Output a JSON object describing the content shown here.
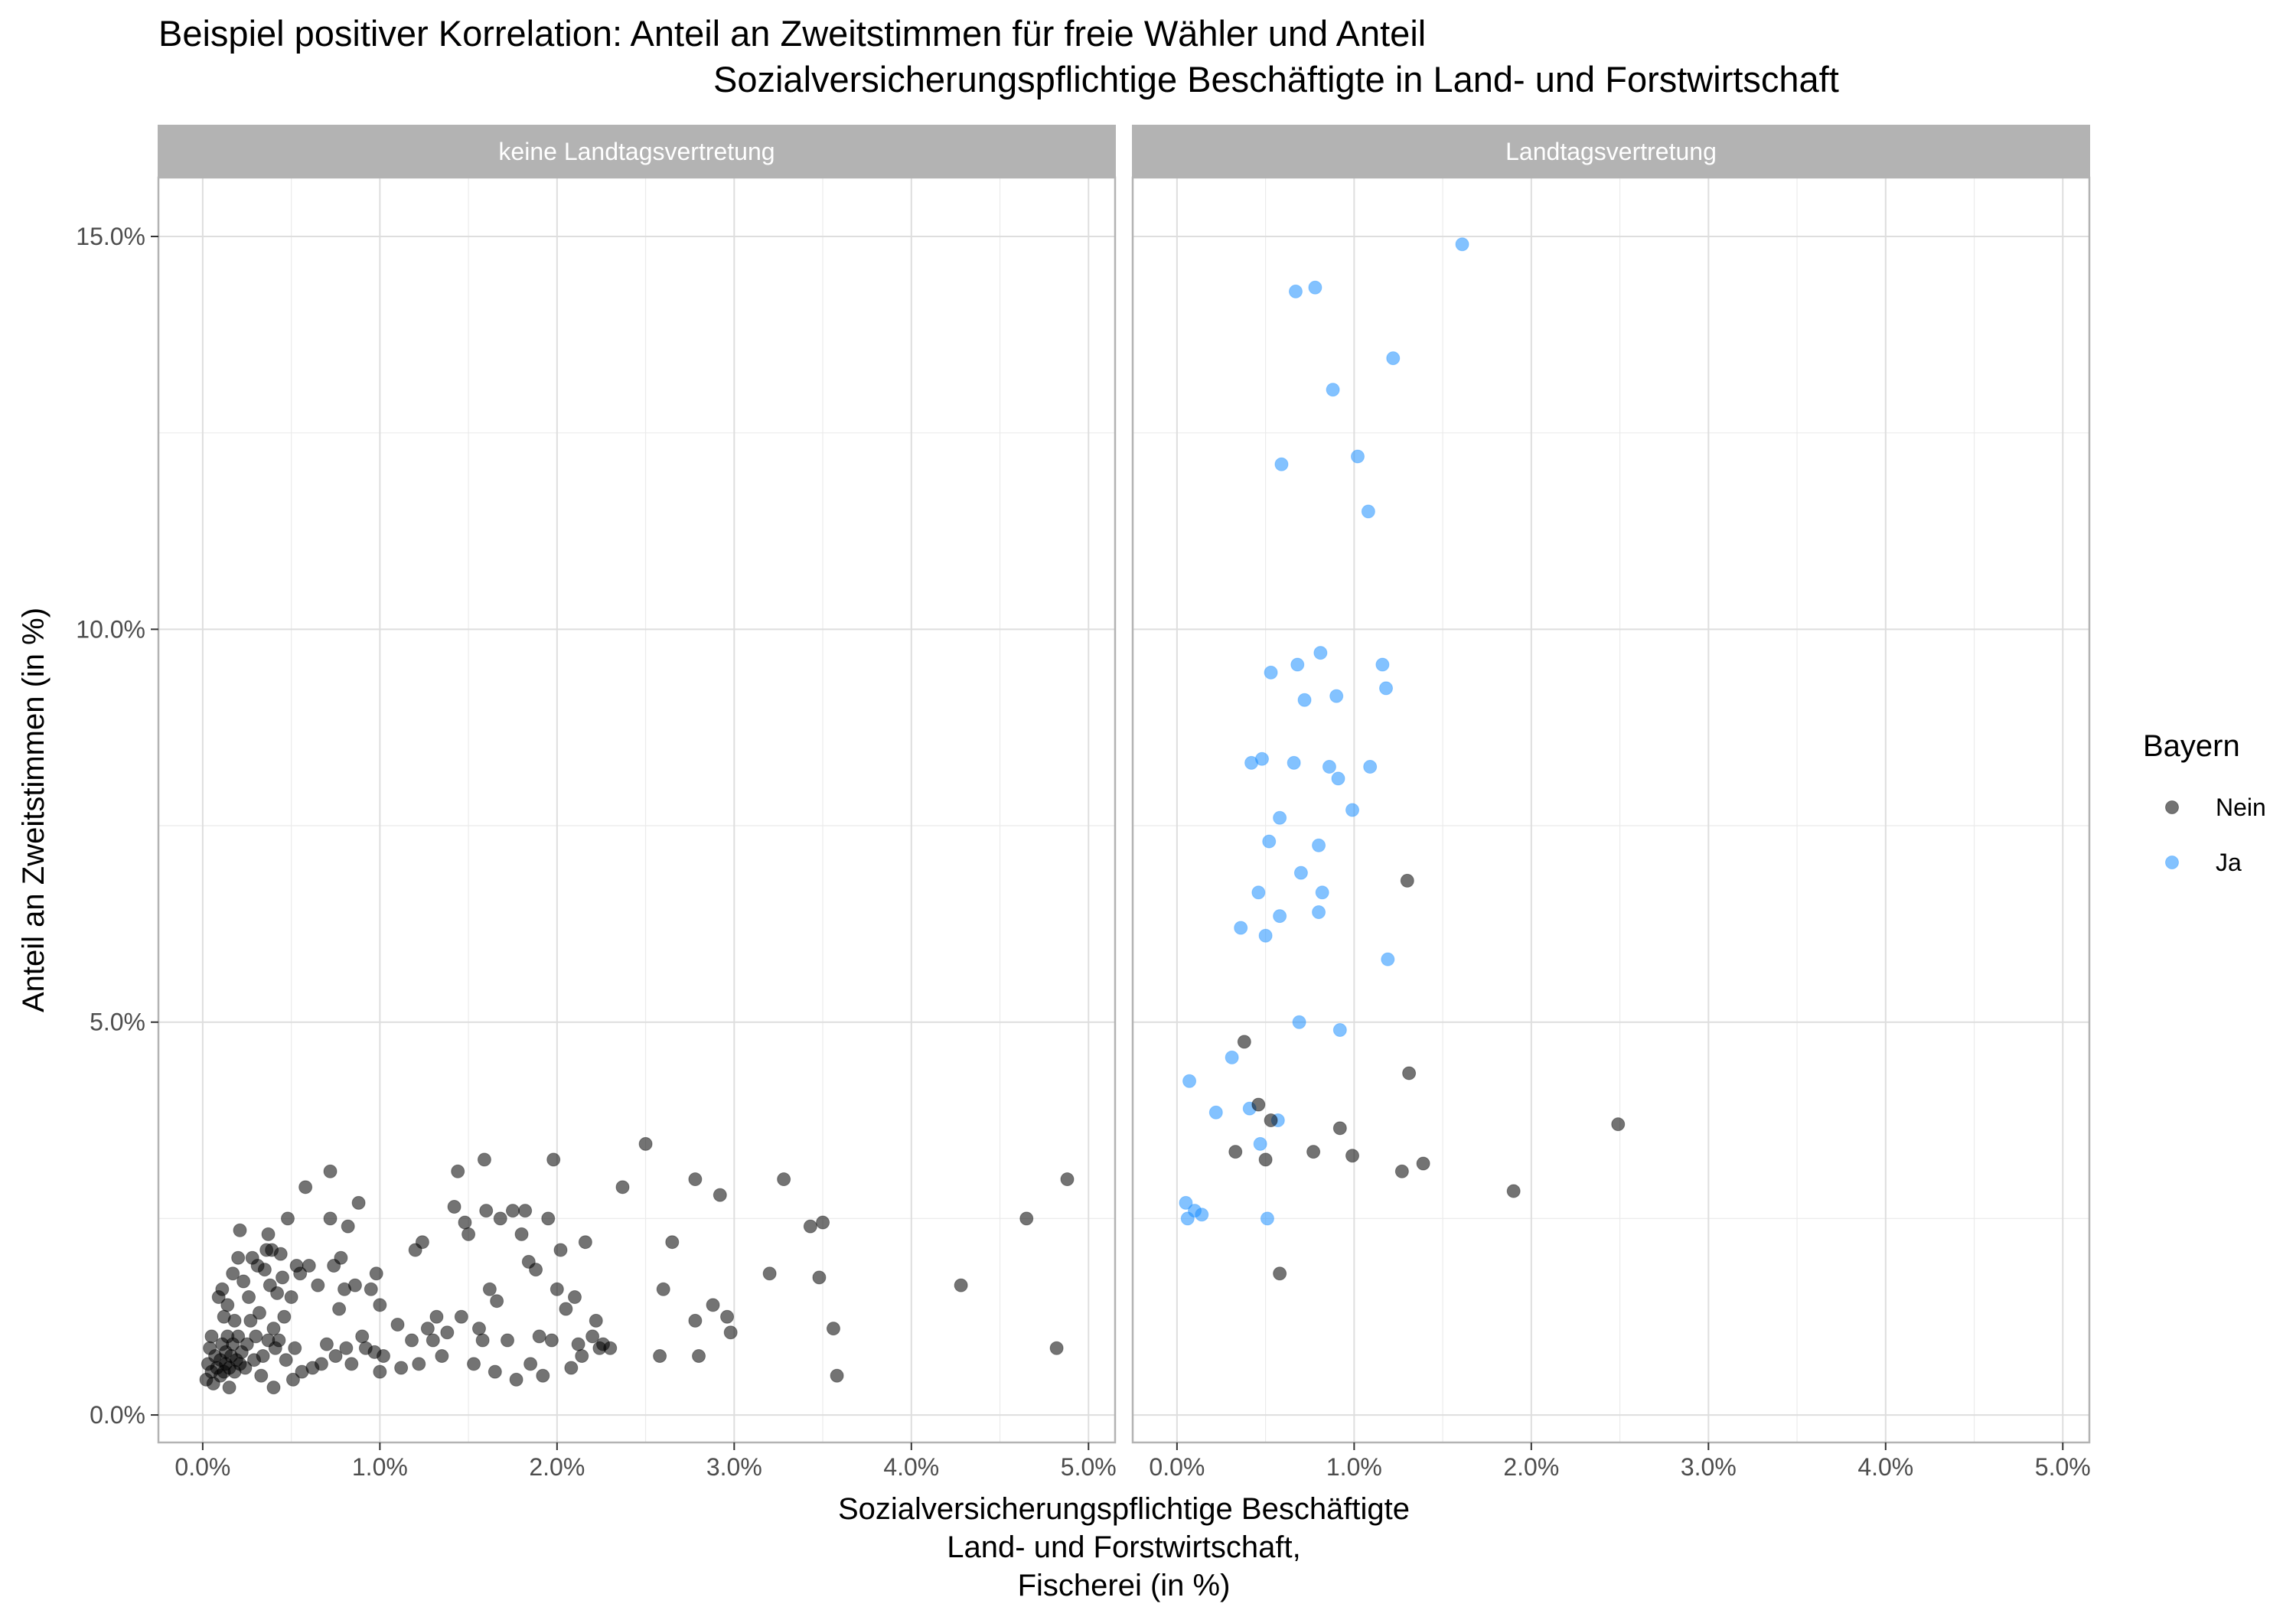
{
  "chart_data": {
    "type": "scatter",
    "title": [
      "Beispiel positiver Korrelation: Anteil an Zweitstimmen für freie Wähler und Anteil",
      "Sozialversicherungspflichtige Beschäftigte in Land- und Forstwirtschaft"
    ],
    "xlabel": [
      "Sozialversicherungspflichtige Beschäftigte",
      "Land- und Forstwirtschaft,",
      "Fischerei (in %)"
    ],
    "ylabel": "Anteil an Zweitstimmen (in %)",
    "xlim": [
      -0.25,
      5.15
    ],
    "ylim": [
      -0.35,
      15.75
    ],
    "x_ticks": [
      0,
      1,
      2,
      3,
      4,
      5
    ],
    "x_tick_labels": [
      "0.0%",
      "1.0%",
      "2.0%",
      "3.0%",
      "4.0%",
      "5.0%"
    ],
    "y_ticks": [
      0,
      5,
      10,
      15
    ],
    "y_tick_labels": [
      "0.0%",
      "5.0%",
      "10.0%",
      "15.0%"
    ],
    "grid": true,
    "legend": {
      "title": "Bayern",
      "placement": "right",
      "entries": [
        {
          "label": "Nein",
          "color": "#000000"
        },
        {
          "label": "Ja",
          "color": "#1E90FF"
        }
      ]
    },
    "panels": [
      {
        "strip": "keine Landtagsvertretung",
        "series": [
          {
            "legend": "Nein",
            "color": "#000000",
            "points": [
              [
                0.02,
                0.45
              ],
              [
                0.03,
                0.65
              ],
              [
                0.04,
                0.85
              ],
              [
                0.05,
                0.55
              ],
              [
                0.05,
                1.0
              ],
              [
                0.06,
                0.4
              ],
              [
                0.07,
                0.75
              ],
              [
                0.08,
                0.6
              ],
              [
                0.09,
                1.5
              ],
              [
                0.1,
                0.5
              ],
              [
                0.1,
                0.7
              ],
              [
                0.11,
                0.9
              ],
              [
                0.11,
                1.6
              ],
              [
                0.12,
                0.55
              ],
              [
                0.12,
                1.25
              ],
              [
                0.13,
                0.65
              ],
              [
                0.13,
                0.8
              ],
              [
                0.14,
                1.0
              ],
              [
                0.14,
                1.4
              ],
              [
                0.15,
                0.6
              ],
              [
                0.15,
                0.35
              ],
              [
                0.16,
                0.75
              ],
              [
                0.17,
                0.9
              ],
              [
                0.17,
                1.8
              ],
              [
                0.18,
                0.55
              ],
              [
                0.18,
                1.2
              ],
              [
                0.19,
                0.7
              ],
              [
                0.2,
                2.0
              ],
              [
                0.2,
                1.0
              ],
              [
                0.21,
                0.65
              ],
              [
                0.21,
                2.35
              ],
              [
                0.22,
                0.8
              ],
              [
                0.23,
                1.7
              ],
              [
                0.24,
                0.6
              ],
              [
                0.25,
                0.9
              ],
              [
                0.26,
                1.5
              ],
              [
                0.27,
                1.2
              ],
              [
                0.28,
                2.0
              ],
              [
                0.29,
                0.7
              ],
              [
                0.3,
                1.0
              ],
              [
                0.31,
                1.9
              ],
              [
                0.32,
                1.3
              ],
              [
                0.33,
                0.5
              ],
              [
                0.34,
                0.75
              ],
              [
                0.35,
                1.85
              ],
              [
                0.36,
                2.1
              ],
              [
                0.37,
                2.3
              ],
              [
                0.37,
                0.95
              ],
              [
                0.38,
                1.65
              ],
              [
                0.39,
                2.1
              ],
              [
                0.4,
                1.1
              ],
              [
                0.4,
                0.35
              ],
              [
                0.41,
                0.85
              ],
              [
                0.42,
                1.55
              ],
              [
                0.43,
                0.95
              ],
              [
                0.44,
                2.05
              ],
              [
                0.45,
                1.75
              ],
              [
                0.46,
                1.25
              ],
              [
                0.47,
                0.7
              ],
              [
                0.48,
                2.5
              ],
              [
                0.5,
                1.5
              ],
              [
                0.51,
                0.45
              ],
              [
                0.52,
                0.85
              ],
              [
                0.53,
                1.9
              ],
              [
                0.55,
                1.8
              ],
              [
                0.56,
                0.55
              ],
              [
                0.58,
                2.9
              ],
              [
                0.6,
                1.9
              ],
              [
                0.62,
                0.6
              ],
              [
                0.65,
                1.65
              ],
              [
                0.67,
                0.65
              ],
              [
                0.7,
                0.9
              ],
              [
                0.72,
                2.5
              ],
              [
                0.72,
                3.1
              ],
              [
                0.74,
                1.9
              ],
              [
                0.75,
                0.75
              ],
              [
                0.77,
                1.35
              ],
              [
                0.78,
                2.0
              ],
              [
                0.8,
                1.6
              ],
              [
                0.81,
                0.85
              ],
              [
                0.82,
                2.4
              ],
              [
                0.84,
                0.65
              ],
              [
                0.86,
                1.65
              ],
              [
                0.88,
                2.7
              ],
              [
                0.9,
                1.0
              ],
              [
                0.92,
                0.85
              ],
              [
                0.95,
                1.6
              ],
              [
                0.97,
                0.8
              ],
              [
                0.98,
                1.8
              ],
              [
                1.0,
                0.55
              ],
              [
                1.0,
                1.4
              ],
              [
                1.02,
                0.75
              ],
              [
                1.1,
                1.15
              ],
              [
                1.12,
                0.6
              ],
              [
                1.18,
                0.95
              ],
              [
                1.2,
                2.1
              ],
              [
                1.22,
                0.65
              ],
              [
                1.24,
                2.2
              ],
              [
                1.27,
                1.1
              ],
              [
                1.3,
                0.95
              ],
              [
                1.32,
                1.25
              ],
              [
                1.35,
                0.75
              ],
              [
                1.38,
                1.05
              ],
              [
                1.42,
                2.65
              ],
              [
                1.44,
                3.1
              ],
              [
                1.46,
                1.25
              ],
              [
                1.48,
                2.45
              ],
              [
                1.5,
                2.3
              ],
              [
                1.53,
                0.65
              ],
              [
                1.56,
                1.1
              ],
              [
                1.58,
                0.95
              ],
              [
                1.59,
                3.25
              ],
              [
                1.6,
                2.6
              ],
              [
                1.62,
                1.6
              ],
              [
                1.65,
                0.55
              ],
              [
                1.66,
                1.45
              ],
              [
                1.68,
                2.5
              ],
              [
                1.72,
                0.95
              ],
              [
                1.75,
                2.6
              ],
              [
                1.77,
                0.45
              ],
              [
                1.8,
                2.3
              ],
              [
                1.82,
                2.6
              ],
              [
                1.84,
                1.95
              ],
              [
                1.85,
                0.65
              ],
              [
                1.88,
                1.85
              ],
              [
                1.9,
                1.0
              ],
              [
                1.92,
                0.5
              ],
              [
                1.95,
                2.5
              ],
              [
                1.97,
                0.95
              ],
              [
                1.98,
                3.25
              ],
              [
                2.0,
                1.6
              ],
              [
                2.02,
                2.1
              ],
              [
                2.05,
                1.35
              ],
              [
                2.08,
                0.6
              ],
              [
                2.1,
                1.5
              ],
              [
                2.12,
                0.9
              ],
              [
                2.14,
                0.75
              ],
              [
                2.16,
                2.2
              ],
              [
                2.2,
                1.0
              ],
              [
                2.22,
                1.2
              ],
              [
                2.24,
                0.85
              ],
              [
                2.26,
                0.9
              ],
              [
                2.3,
                0.85
              ],
              [
                2.37,
                2.9
              ],
              [
                2.5,
                3.45
              ],
              [
                2.58,
                0.75
              ],
              [
                2.6,
                1.6
              ],
              [
                2.65,
                2.2
              ],
              [
                2.78,
                1.2
              ],
              [
                2.78,
                3.0
              ],
              [
                2.8,
                0.75
              ],
              [
                2.88,
                1.4
              ],
              [
                2.92,
                2.8
              ],
              [
                2.96,
                1.25
              ],
              [
                2.98,
                1.05
              ],
              [
                3.2,
                1.8
              ],
              [
                3.28,
                3.0
              ],
              [
                3.43,
                2.4
              ],
              [
                3.48,
                1.75
              ],
              [
                3.5,
                2.45
              ],
              [
                3.56,
                1.1
              ],
              [
                3.58,
                0.5
              ],
              [
                4.28,
                1.65
              ],
              [
                4.65,
                2.5
              ],
              [
                4.82,
                0.85
              ],
              [
                4.88,
                3.0
              ]
            ]
          }
        ]
      },
      {
        "strip": "Landtagsvertretung",
        "series": [
          {
            "legend": "Ja",
            "color": "#1E90FF",
            "points": [
              [
                0.07,
                4.25
              ],
              [
                0.05,
                2.7
              ],
              [
                0.06,
                2.5
              ],
              [
                0.1,
                2.6
              ],
              [
                0.14,
                2.55
              ],
              [
                0.22,
                3.85
              ],
              [
                0.31,
                4.55
              ],
              [
                0.36,
                6.2
              ],
              [
                0.41,
                3.9
              ],
              [
                0.42,
                8.3
              ],
              [
                0.46,
                6.65
              ],
              [
                0.47,
                3.45
              ],
              [
                0.48,
                8.35
              ],
              [
                0.5,
                6.1
              ],
              [
                0.51,
                2.5
              ],
              [
                0.52,
                7.3
              ],
              [
                0.53,
                9.45
              ],
              [
                0.57,
                3.75
              ],
              [
                0.58,
                6.35
              ],
              [
                0.58,
                7.6
              ],
              [
                0.59,
                12.1
              ],
              [
                0.66,
                8.3
              ],
              [
                0.67,
                14.3
              ],
              [
                0.68,
                9.55
              ],
              [
                0.69,
                5.0
              ],
              [
                0.7,
                6.9
              ],
              [
                0.72,
                9.1
              ],
              [
                0.78,
                14.35
              ],
              [
                0.8,
                7.25
              ],
              [
                0.8,
                6.4
              ],
              [
                0.81,
                9.7
              ],
              [
                0.82,
                6.65
              ],
              [
                0.86,
                8.25
              ],
              [
                0.88,
                13.05
              ],
              [
                0.9,
                9.15
              ],
              [
                0.91,
                8.1
              ],
              [
                0.92,
                4.9
              ],
              [
                0.99,
                7.7
              ],
              [
                1.02,
                12.2
              ],
              [
                1.08,
                11.5
              ],
              [
                1.09,
                8.25
              ],
              [
                1.16,
                9.55
              ],
              [
                1.18,
                9.25
              ],
              [
                1.19,
                5.8
              ],
              [
                1.22,
                13.45
              ],
              [
                1.61,
                14.9
              ]
            ]
          },
          {
            "legend": "Nein",
            "color": "#000000",
            "points": [
              [
                0.33,
                3.35
              ],
              [
                0.38,
                4.75
              ],
              [
                0.46,
                3.95
              ],
              [
                0.5,
                3.25
              ],
              [
                0.53,
                3.75
              ],
              [
                0.58,
                1.8
              ],
              [
                0.77,
                3.35
              ],
              [
                0.92,
                3.65
              ],
              [
                0.99,
                3.3
              ],
              [
                1.27,
                3.1
              ],
              [
                1.3,
                6.8
              ],
              [
                1.31,
                4.35
              ],
              [
                1.39,
                3.2
              ],
              [
                1.9,
                2.85
              ],
              [
                2.49,
                3.7
              ]
            ]
          }
        ]
      }
    ]
  }
}
